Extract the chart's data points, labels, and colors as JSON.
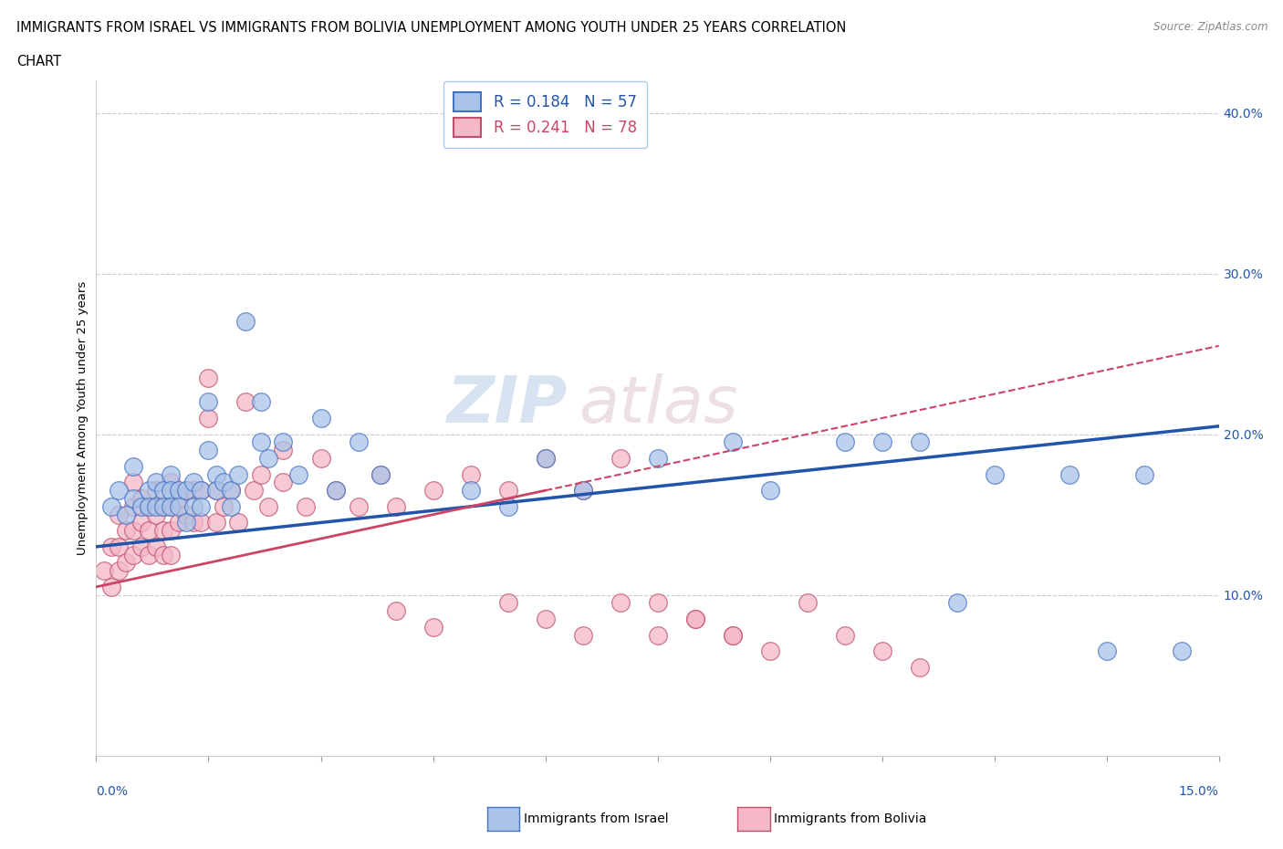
{
  "title_line1": "IMMIGRANTS FROM ISRAEL VS IMMIGRANTS FROM BOLIVIA UNEMPLOYMENT AMONG YOUTH UNDER 25 YEARS CORRELATION",
  "title_line2": "CHART",
  "source": "Source: ZipAtlas.com",
  "ylabel_label": "Unemployment Among Youth under 25 years",
  "xmin": 0.0,
  "xmax": 0.15,
  "ymin": 0.0,
  "ymax": 0.42,
  "israel_color": "#aac4e8",
  "israel_edge": "#4472c4",
  "bolivia_color": "#f4b8c8",
  "bolivia_edge": "#c0506a",
  "israel_line_color": "#2255aa",
  "bolivia_line_color": "#cc4466",
  "israel_R": 0.184,
  "israel_N": 57,
  "bolivia_R": 0.241,
  "bolivia_N": 78,
  "legend_label_israel": "Immigrants from Israel",
  "legend_label_bolivia": "Immigrants from Bolivia",
  "watermark_zip": "ZIP",
  "watermark_atlas": "atlas",
  "grid_color": "#cccccc",
  "israel_line_y0": 0.13,
  "israel_line_y1": 0.205,
  "bolivia_line_y0": 0.105,
  "bolivia_line_y1": 0.255,
  "israel_x": [
    0.002,
    0.003,
    0.004,
    0.005,
    0.005,
    0.006,
    0.007,
    0.007,
    0.008,
    0.008,
    0.009,
    0.009,
    0.01,
    0.01,
    0.01,
    0.011,
    0.011,
    0.012,
    0.012,
    0.013,
    0.013,
    0.014,
    0.014,
    0.015,
    0.015,
    0.016,
    0.016,
    0.017,
    0.018,
    0.018,
    0.019,
    0.02,
    0.022,
    0.022,
    0.023,
    0.025,
    0.027,
    0.03,
    0.032,
    0.035,
    0.038,
    0.05,
    0.055,
    0.06,
    0.065,
    0.075,
    0.085,
    0.09,
    0.1,
    0.105,
    0.11,
    0.115,
    0.12,
    0.13,
    0.135,
    0.14,
    0.145
  ],
  "israel_y": [
    0.155,
    0.165,
    0.15,
    0.18,
    0.16,
    0.155,
    0.165,
    0.155,
    0.17,
    0.155,
    0.165,
    0.155,
    0.175,
    0.165,
    0.155,
    0.165,
    0.155,
    0.165,
    0.145,
    0.17,
    0.155,
    0.165,
    0.155,
    0.22,
    0.19,
    0.175,
    0.165,
    0.17,
    0.165,
    0.155,
    0.175,
    0.27,
    0.22,
    0.195,
    0.185,
    0.195,
    0.175,
    0.21,
    0.165,
    0.195,
    0.175,
    0.165,
    0.155,
    0.185,
    0.165,
    0.185,
    0.195,
    0.165,
    0.195,
    0.195,
    0.195,
    0.095,
    0.175,
    0.175,
    0.065,
    0.175,
    0.065
  ],
  "bolivia_x": [
    0.001,
    0.002,
    0.002,
    0.003,
    0.003,
    0.003,
    0.004,
    0.004,
    0.005,
    0.005,
    0.005,
    0.005,
    0.006,
    0.006,
    0.006,
    0.007,
    0.007,
    0.007,
    0.008,
    0.008,
    0.008,
    0.009,
    0.009,
    0.009,
    0.01,
    0.01,
    0.01,
    0.01,
    0.011,
    0.011,
    0.012,
    0.012,
    0.013,
    0.013,
    0.014,
    0.014,
    0.015,
    0.015,
    0.016,
    0.016,
    0.017,
    0.018,
    0.019,
    0.02,
    0.021,
    0.022,
    0.023,
    0.025,
    0.025,
    0.028,
    0.03,
    0.032,
    0.035,
    0.038,
    0.04,
    0.045,
    0.05,
    0.055,
    0.06,
    0.065,
    0.07,
    0.075,
    0.08,
    0.085,
    0.04,
    0.045,
    0.055,
    0.06,
    0.065,
    0.07,
    0.075,
    0.08,
    0.085,
    0.09,
    0.095,
    0.1,
    0.105,
    0.11
  ],
  "bolivia_y": [
    0.115,
    0.13,
    0.105,
    0.15,
    0.13,
    0.115,
    0.14,
    0.12,
    0.17,
    0.155,
    0.14,
    0.125,
    0.16,
    0.145,
    0.13,
    0.155,
    0.14,
    0.125,
    0.165,
    0.15,
    0.13,
    0.155,
    0.14,
    0.125,
    0.17,
    0.155,
    0.14,
    0.125,
    0.16,
    0.145,
    0.165,
    0.15,
    0.165,
    0.145,
    0.165,
    0.145,
    0.235,
    0.21,
    0.165,
    0.145,
    0.155,
    0.165,
    0.145,
    0.22,
    0.165,
    0.175,
    0.155,
    0.19,
    0.17,
    0.155,
    0.185,
    0.165,
    0.155,
    0.175,
    0.155,
    0.165,
    0.175,
    0.165,
    0.185,
    0.165,
    0.185,
    0.095,
    0.085,
    0.075,
    0.09,
    0.08,
    0.095,
    0.085,
    0.075,
    0.095,
    0.075,
    0.085,
    0.075,
    0.065,
    0.095,
    0.075,
    0.065,
    0.055
  ]
}
